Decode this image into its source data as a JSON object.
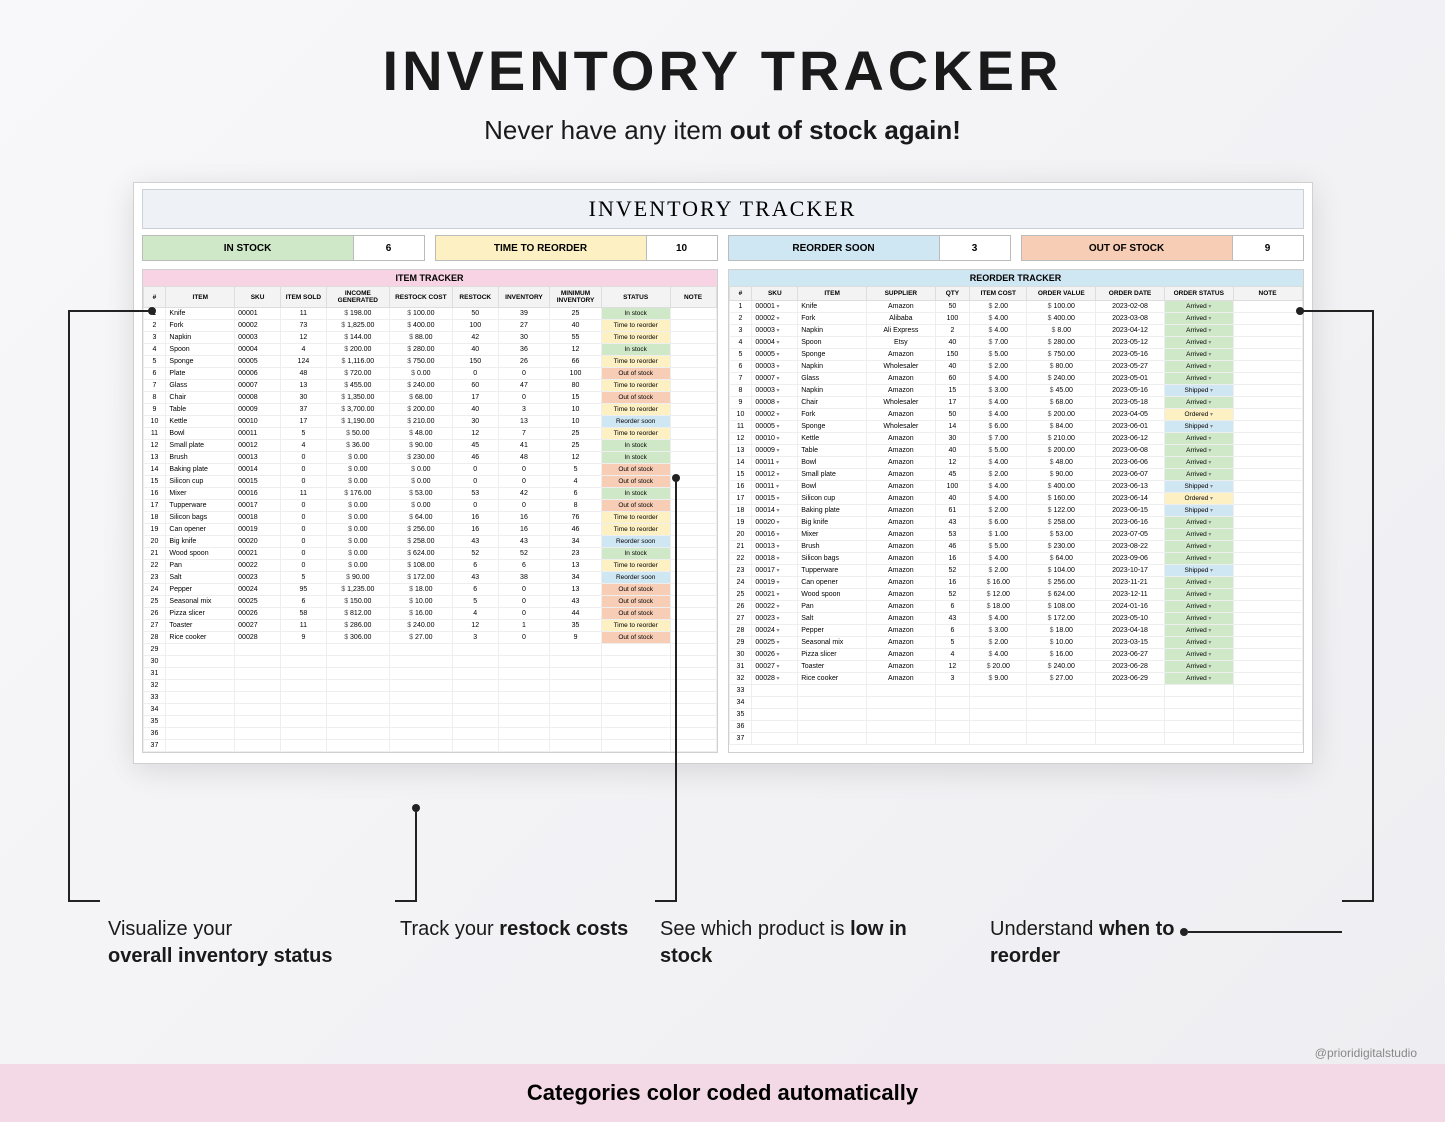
{
  "hero": {
    "title": "INVENTORY TRACKER",
    "sub_plain": "Never have any item ",
    "sub_bold": "out of stock again!"
  },
  "sheet_title": "INVENTORY TRACKER",
  "summary": [
    {
      "label": "IN STOCK",
      "value": "6",
      "bg": "#cfe8c7"
    },
    {
      "label": "TIME TO REORDER",
      "value": "10",
      "bg": "#fdf0c2"
    },
    {
      "label": "REORDER SOON",
      "value": "3",
      "bg": "#cfe6f3"
    },
    {
      "label": "OUT OF STOCK",
      "value": "9",
      "bg": "#f7cdb5"
    }
  ],
  "status_colors": {
    "In stock": "#cfe8c7",
    "Time to reorder": "#fdf0c2",
    "Reorder soon": "#cfe6f3",
    "Out of stock": "#f7cdb5"
  },
  "order_status_colors": {
    "Arrived": "#cfe8c7",
    "Shipped": "#cfe6f3",
    "Ordered": "#fdf0c2"
  },
  "item_panel": {
    "title_bg": "#f7d3e3",
    "title": "ITEM TRACKER",
    "headers": [
      "#",
      "ITEM",
      "SKU",
      "ITEM SOLD",
      "INCOME GENERATED",
      "RESTOCK COST",
      "RESTOCK",
      "INVENTORY",
      "MINIMUM INVENTORY",
      "STATUS",
      "NOTE"
    ],
    "col_widths": [
      "4%",
      "12%",
      "8%",
      "8%",
      "11%",
      "11%",
      "8%",
      "9%",
      "9%",
      "12%",
      "8%"
    ],
    "rows": [
      [
        "1",
        "Knife",
        "00001",
        "11",
        "198.00",
        "100.00",
        "50",
        "39",
        "25",
        "In stock",
        ""
      ],
      [
        "2",
        "Fork",
        "00002",
        "73",
        "1,825.00",
        "400.00",
        "100",
        "27",
        "40",
        "Time to reorder",
        ""
      ],
      [
        "3",
        "Napkin",
        "00003",
        "12",
        "144.00",
        "88.00",
        "42",
        "30",
        "55",
        "Time to reorder",
        ""
      ],
      [
        "4",
        "Spoon",
        "00004",
        "4",
        "200.00",
        "280.00",
        "40",
        "36",
        "12",
        "In stock",
        ""
      ],
      [
        "5",
        "Sponge",
        "00005",
        "124",
        "1,116.00",
        "750.00",
        "150",
        "26",
        "66",
        "Time to reorder",
        ""
      ],
      [
        "6",
        "Plate",
        "00006",
        "48",
        "720.00",
        "0.00",
        "0",
        "0",
        "100",
        "Out of stock",
        ""
      ],
      [
        "7",
        "Glass",
        "00007",
        "13",
        "455.00",
        "240.00",
        "60",
        "47",
        "80",
        "Time to reorder",
        ""
      ],
      [
        "8",
        "Chair",
        "00008",
        "30",
        "1,350.00",
        "68.00",
        "17",
        "0",
        "15",
        "Out of stock",
        ""
      ],
      [
        "9",
        "Table",
        "00009",
        "37",
        "3,700.00",
        "200.00",
        "40",
        "3",
        "10",
        "Time to reorder",
        ""
      ],
      [
        "10",
        "Kettle",
        "00010",
        "17",
        "1,190.00",
        "210.00",
        "30",
        "13",
        "10",
        "Reorder soon",
        ""
      ],
      [
        "11",
        "Bowl",
        "00011",
        "5",
        "50.00",
        "48.00",
        "12",
        "7",
        "25",
        "Time to reorder",
        ""
      ],
      [
        "12",
        "Small plate",
        "00012",
        "4",
        "36.00",
        "90.00",
        "45",
        "41",
        "25",
        "In stock",
        ""
      ],
      [
        "13",
        "Brush",
        "00013",
        "0",
        "0.00",
        "230.00",
        "46",
        "48",
        "12",
        "In stock",
        ""
      ],
      [
        "14",
        "Baking plate",
        "00014",
        "0",
        "0.00",
        "0.00",
        "0",
        "0",
        "5",
        "Out of stock",
        ""
      ],
      [
        "15",
        "Silicon cup",
        "00015",
        "0",
        "0.00",
        "0.00",
        "0",
        "0",
        "4",
        "Out of stock",
        ""
      ],
      [
        "16",
        "Mixer",
        "00016",
        "11",
        "176.00",
        "53.00",
        "53",
        "42",
        "6",
        "In stock",
        ""
      ],
      [
        "17",
        "Tupperware",
        "00017",
        "0",
        "0.00",
        "0.00",
        "0",
        "0",
        "8",
        "Out of stock",
        ""
      ],
      [
        "18",
        "Silicon bags",
        "00018",
        "0",
        "0.00",
        "64.00",
        "16",
        "16",
        "76",
        "Time to reorder",
        ""
      ],
      [
        "19",
        "Can opener",
        "00019",
        "0",
        "0.00",
        "256.00",
        "16",
        "16",
        "46",
        "Time to reorder",
        ""
      ],
      [
        "20",
        "Big knife",
        "00020",
        "0",
        "0.00",
        "258.00",
        "43",
        "43",
        "34",
        "Reorder soon",
        ""
      ],
      [
        "21",
        "Wood spoon",
        "00021",
        "0",
        "0.00",
        "624.00",
        "52",
        "52",
        "23",
        "In stock",
        ""
      ],
      [
        "22",
        "Pan",
        "00022",
        "0",
        "0.00",
        "108.00",
        "6",
        "6",
        "13",
        "Time to reorder",
        ""
      ],
      [
        "23",
        "Salt",
        "00023",
        "5",
        "90.00",
        "172.00",
        "43",
        "38",
        "34",
        "Reorder soon",
        ""
      ],
      [
        "24",
        "Pepper",
        "00024",
        "95",
        "1,235.00",
        "18.00",
        "6",
        "0",
        "13",
        "Out of stock",
        ""
      ],
      [
        "25",
        "Seasonal mix",
        "00025",
        "6",
        "150.00",
        "10.00",
        "5",
        "0",
        "43",
        "Out of stock",
        ""
      ],
      [
        "26",
        "Pizza slicer",
        "00026",
        "58",
        "812.00",
        "16.00",
        "4",
        "0",
        "44",
        "Out of stock",
        ""
      ],
      [
        "27",
        "Toaster",
        "00027",
        "11",
        "286.00",
        "240.00",
        "12",
        "1",
        "35",
        "Time to reorder",
        ""
      ],
      [
        "28",
        "Rice cooker",
        "00028",
        "9",
        "306.00",
        "27.00",
        "3",
        "0",
        "9",
        "Out of stock",
        ""
      ],
      [
        "29",
        "",
        "",
        "",
        "",
        "",
        "",
        "",
        "",
        "",
        ""
      ],
      [
        "30",
        "",
        "",
        "",
        "",
        "",
        "",
        "",
        "",
        "",
        ""
      ],
      [
        "31",
        "",
        "",
        "",
        "",
        "",
        "",
        "",
        "",
        "",
        ""
      ],
      [
        "32",
        "",
        "",
        "",
        "",
        "",
        "",
        "",
        "",
        "",
        ""
      ],
      [
        "33",
        "",
        "",
        "",
        "",
        "",
        "",
        "",
        "",
        "",
        ""
      ],
      [
        "34",
        "",
        "",
        "",
        "",
        "",
        "",
        "",
        "",
        "",
        ""
      ],
      [
        "35",
        "",
        "",
        "",
        "",
        "",
        "",
        "",
        "",
        "",
        ""
      ],
      [
        "36",
        "",
        "",
        "",
        "",
        "",
        "",
        "",
        "",
        "",
        ""
      ],
      [
        "37",
        "",
        "",
        "",
        "",
        "",
        "",
        "",
        "",
        "",
        ""
      ]
    ]
  },
  "reorder_panel": {
    "title_bg": "#cfe6f3",
    "title": "REORDER TRACKER",
    "headers": [
      "#",
      "SKU",
      "ITEM",
      "SUPPLIER",
      "QTY",
      "ITEM COST",
      "ORDER VALUE",
      "ORDER DATE",
      "ORDER STATUS",
      "NOTE"
    ],
    "col_widths": [
      "4%",
      "8%",
      "12%",
      "12%",
      "6%",
      "10%",
      "12%",
      "12%",
      "12%",
      "12%"
    ],
    "rows": [
      [
        "1",
        "00001",
        "Knife",
        "Amazon",
        "50",
        "2.00",
        "100.00",
        "2023-02-08",
        "Arrived",
        ""
      ],
      [
        "2",
        "00002",
        "Fork",
        "Alibaba",
        "100",
        "4.00",
        "400.00",
        "2023-03-08",
        "Arrived",
        ""
      ],
      [
        "3",
        "00003",
        "Napkin",
        "Ali Express",
        "2",
        "4.00",
        "8.00",
        "2023-04-12",
        "Arrived",
        ""
      ],
      [
        "4",
        "00004",
        "Spoon",
        "Etsy",
        "40",
        "7.00",
        "280.00",
        "2023-05-12",
        "Arrived",
        ""
      ],
      [
        "5",
        "00005",
        "Sponge",
        "Amazon",
        "150",
        "5.00",
        "750.00",
        "2023-05-16",
        "Arrived",
        ""
      ],
      [
        "6",
        "00003",
        "Napkin",
        "Wholesaler",
        "40",
        "2.00",
        "80.00",
        "2023-05-27",
        "Arrived",
        ""
      ],
      [
        "7",
        "00007",
        "Glass",
        "Amazon",
        "60",
        "4.00",
        "240.00",
        "2023-05-01",
        "Arrived",
        ""
      ],
      [
        "8",
        "00003",
        "Napkin",
        "Amazon",
        "15",
        "3.00",
        "45.00",
        "2023-05-16",
        "Shipped",
        ""
      ],
      [
        "9",
        "00008",
        "Chair",
        "Wholesaler",
        "17",
        "4.00",
        "68.00",
        "2023-05-18",
        "Arrived",
        ""
      ],
      [
        "10",
        "00002",
        "Fork",
        "Amazon",
        "50",
        "4.00",
        "200.00",
        "2023-04-05",
        "Ordered",
        ""
      ],
      [
        "11",
        "00005",
        "Sponge",
        "Wholesaler",
        "14",
        "6.00",
        "84.00",
        "2023-06-01",
        "Shipped",
        ""
      ],
      [
        "12",
        "00010",
        "Kettle",
        "Amazon",
        "30",
        "7.00",
        "210.00",
        "2023-06-12",
        "Arrived",
        ""
      ],
      [
        "13",
        "00009",
        "Table",
        "Amazon",
        "40",
        "5.00",
        "200.00",
        "2023-06-08",
        "Arrived",
        ""
      ],
      [
        "14",
        "00011",
        "Bowl",
        "Amazon",
        "12",
        "4.00",
        "48.00",
        "2023-06-06",
        "Arrived",
        ""
      ],
      [
        "15",
        "00012",
        "Small plate",
        "Amazon",
        "45",
        "2.00",
        "90.00",
        "2023-06-07",
        "Arrived",
        ""
      ],
      [
        "16",
        "00011",
        "Bowl",
        "Amazon",
        "100",
        "4.00",
        "400.00",
        "2023-06-13",
        "Shipped",
        ""
      ],
      [
        "17",
        "00015",
        "Silicon cup",
        "Amazon",
        "40",
        "4.00",
        "160.00",
        "2023-06-14",
        "Ordered",
        ""
      ],
      [
        "18",
        "00014",
        "Baking plate",
        "Amazon",
        "61",
        "2.00",
        "122.00",
        "2023-06-15",
        "Shipped",
        ""
      ],
      [
        "19",
        "00020",
        "Big knife",
        "Amazon",
        "43",
        "6.00",
        "258.00",
        "2023-06-16",
        "Arrived",
        ""
      ],
      [
        "20",
        "00016",
        "Mixer",
        "Amazon",
        "53",
        "1.00",
        "53.00",
        "2023-07-05",
        "Arrived",
        ""
      ],
      [
        "21",
        "00013",
        "Brush",
        "Amazon",
        "46",
        "5.00",
        "230.00",
        "2023-08-22",
        "Arrived",
        ""
      ],
      [
        "22",
        "00018",
        "Silicon bags",
        "Amazon",
        "16",
        "4.00",
        "64.00",
        "2023-09-06",
        "Arrived",
        ""
      ],
      [
        "23",
        "00017",
        "Tupperware",
        "Amazon",
        "52",
        "2.00",
        "104.00",
        "2023-10-17",
        "Shipped",
        ""
      ],
      [
        "24",
        "00019",
        "Can opener",
        "Amazon",
        "16",
        "16.00",
        "256.00",
        "2023-11-21",
        "Arrived",
        ""
      ],
      [
        "25",
        "00021",
        "Wood spoon",
        "Amazon",
        "52",
        "12.00",
        "624.00",
        "2023-12-11",
        "Arrived",
        ""
      ],
      [
        "26",
        "00022",
        "Pan",
        "Amazon",
        "6",
        "18.00",
        "108.00",
        "2024-01-16",
        "Arrived",
        ""
      ],
      [
        "27",
        "00023",
        "Salt",
        "Amazon",
        "43",
        "4.00",
        "172.00",
        "2023-05-10",
        "Arrived",
        ""
      ],
      [
        "28",
        "00024",
        "Pepper",
        "Amazon",
        "6",
        "3.00",
        "18.00",
        "2023-04-18",
        "Arrived",
        ""
      ],
      [
        "29",
        "00025",
        "Seasonal mix",
        "Amazon",
        "5",
        "2.00",
        "10.00",
        "2023-03-15",
        "Arrived",
        ""
      ],
      [
        "30",
        "00026",
        "Pizza slicer",
        "Amazon",
        "4",
        "4.00",
        "16.00",
        "2023-06-27",
        "Arrived",
        ""
      ],
      [
        "31",
        "00027",
        "Toaster",
        "Amazon",
        "12",
        "20.00",
        "240.00",
        "2023-06-28",
        "Arrived",
        ""
      ],
      [
        "32",
        "00028",
        "Rice cooker",
        "Amazon",
        "3",
        "9.00",
        "27.00",
        "2023-06-29",
        "Arrived",
        ""
      ],
      [
        "33",
        "",
        "",
        "",
        "",
        "",
        "",
        "",
        "",
        ""
      ],
      [
        "34",
        "",
        "",
        "",
        "",
        "",
        "",
        "",
        "",
        ""
      ],
      [
        "35",
        "",
        "",
        "",
        "",
        "",
        "",
        "",
        "",
        ""
      ],
      [
        "36",
        "",
        "",
        "",
        "",
        "",
        "",
        "",
        "",
        ""
      ],
      [
        "37",
        "",
        "",
        "",
        "",
        "",
        "",
        "",
        "",
        ""
      ]
    ]
  },
  "callouts": {
    "c1a": "Visualize your",
    "c1b": "overall inventory status",
    "c2a": "Track your ",
    "c2b": "restock costs",
    "c3a": "See which product is ",
    "c3b": "low in stock",
    "c4a": "Understand ",
    "c4b": "when to reorder"
  },
  "footer": "Categories color coded automatically",
  "handle": "@prioridigitalstudio"
}
